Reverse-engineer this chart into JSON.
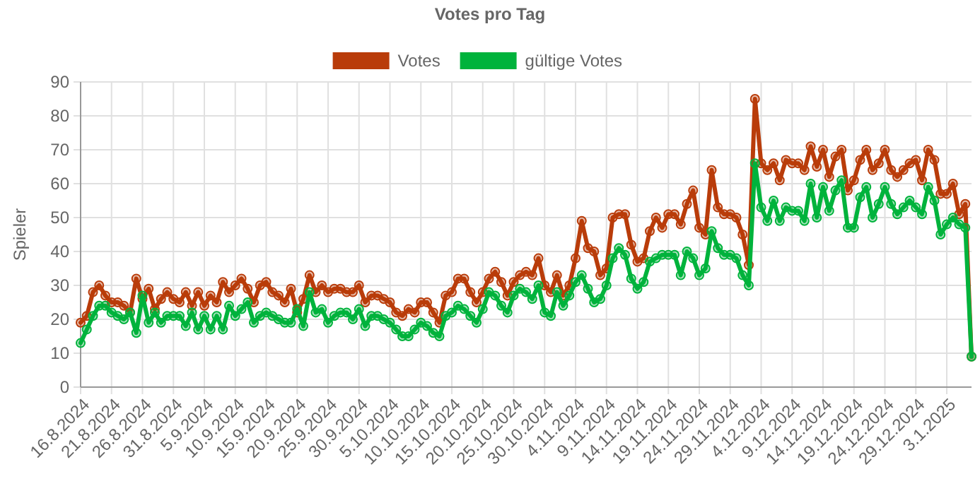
{
  "chart_data": {
    "type": "line",
    "title": "Votes pro Tag",
    "ylabel": "Spieler",
    "x": [
      "2024-08-16",
      "2024-08-17",
      "2024-08-18",
      "2024-08-19",
      "2024-08-20",
      "2024-08-21",
      "2024-08-22",
      "2024-08-23",
      "2024-08-24",
      "2024-08-25",
      "2024-08-26",
      "2024-08-27",
      "2024-08-28",
      "2024-08-29",
      "2024-08-30",
      "2024-08-31",
      "2024-09-01",
      "2024-09-02",
      "2024-09-03",
      "2024-09-04",
      "2024-09-05",
      "2024-09-06",
      "2024-09-07",
      "2024-09-08",
      "2024-09-09",
      "2024-09-10",
      "2024-09-11",
      "2024-09-12",
      "2024-09-13",
      "2024-09-14",
      "2024-09-15",
      "2024-09-16",
      "2024-09-17",
      "2024-09-18",
      "2024-09-19",
      "2024-09-20",
      "2024-09-21",
      "2024-09-22",
      "2024-09-23",
      "2024-09-24",
      "2024-09-25",
      "2024-09-26",
      "2024-09-27",
      "2024-09-28",
      "2024-09-29",
      "2024-09-30",
      "2024-10-01",
      "2024-10-02",
      "2024-10-03",
      "2024-10-04",
      "2024-10-05",
      "2024-10-06",
      "2024-10-07",
      "2024-10-08",
      "2024-10-09",
      "2024-10-10",
      "2024-10-11",
      "2024-10-12",
      "2024-10-13",
      "2024-10-14",
      "2024-10-15",
      "2024-10-16",
      "2024-10-17",
      "2024-10-18",
      "2024-10-19",
      "2024-10-20",
      "2024-10-21",
      "2024-10-22",
      "2024-10-23",
      "2024-10-24",
      "2024-10-25",
      "2024-10-26",
      "2024-10-27",
      "2024-10-28",
      "2024-10-29",
      "2024-10-30",
      "2024-10-31",
      "2024-11-01",
      "2024-11-02",
      "2024-11-03",
      "2024-11-04",
      "2024-11-05",
      "2024-11-06",
      "2024-11-07",
      "2024-11-08",
      "2024-11-09",
      "2024-11-10",
      "2024-11-11",
      "2024-11-12",
      "2024-11-13",
      "2024-11-14",
      "2024-11-15",
      "2024-11-16",
      "2024-11-17",
      "2024-11-18",
      "2024-11-19",
      "2024-11-20",
      "2024-11-21",
      "2024-11-22",
      "2024-11-23",
      "2024-11-24",
      "2024-11-25",
      "2024-11-26",
      "2024-11-27",
      "2024-11-28",
      "2024-11-29",
      "2024-11-30",
      "2024-12-01",
      "2024-12-02",
      "2024-12-03",
      "2024-12-04",
      "2024-12-05",
      "2024-12-06",
      "2024-12-07",
      "2024-12-08",
      "2024-12-09",
      "2024-12-10",
      "2024-12-11",
      "2024-12-12",
      "2024-12-13",
      "2024-12-14",
      "2024-12-15",
      "2024-12-16",
      "2024-12-17",
      "2024-12-18",
      "2024-12-19",
      "2024-12-20",
      "2024-12-21",
      "2024-12-22",
      "2024-12-23",
      "2024-12-24",
      "2024-12-25",
      "2024-12-26",
      "2024-12-27",
      "2024-12-28",
      "2024-12-29",
      "2024-12-30",
      "2024-12-31",
      "2025-01-01",
      "2025-01-02",
      "2025-01-03",
      "2025-01-04",
      "2025-01-05",
      "2025-01-06",
      "2025-01-07"
    ],
    "xlim": [
      "2024-08-16",
      "2025-01-07"
    ],
    "xticks": [
      {
        "value": "2024-08-16",
        "label": "16.8.2024"
      },
      {
        "value": "2024-08-21",
        "label": "21.8.2024"
      },
      {
        "value": "2024-08-26",
        "label": "26.8.2024"
      },
      {
        "value": "2024-08-31",
        "label": "31.8.2024"
      },
      {
        "value": "2024-09-05",
        "label": "5.9.2024"
      },
      {
        "value": "2024-09-10",
        "label": "10.9.2024"
      },
      {
        "value": "2024-09-15",
        "label": "15.9.2024"
      },
      {
        "value": "2024-09-20",
        "label": "20.9.2024"
      },
      {
        "value": "2024-09-25",
        "label": "25.9.2024"
      },
      {
        "value": "2024-09-30",
        "label": "30.9.2024"
      },
      {
        "value": "2024-10-05",
        "label": "5.10.2024"
      },
      {
        "value": "2024-10-10",
        "label": "10.10.2024"
      },
      {
        "value": "2024-10-15",
        "label": "15.10.2024"
      },
      {
        "value": "2024-10-20",
        "label": "20.10.2024"
      },
      {
        "value": "2024-10-25",
        "label": "25.10.2024"
      },
      {
        "value": "2024-10-30",
        "label": "30.10.2024"
      },
      {
        "value": "2024-11-04",
        "label": "4.11.2024"
      },
      {
        "value": "2024-11-09",
        "label": "9.11.2024"
      },
      {
        "value": "2024-11-14",
        "label": "14.11.2024"
      },
      {
        "value": "2024-11-19",
        "label": "19.11.2024"
      },
      {
        "value": "2024-11-24",
        "label": "24.11.2024"
      },
      {
        "value": "2024-11-29",
        "label": "29.11.2024"
      },
      {
        "value": "2024-12-04",
        "label": "4.12.2024"
      },
      {
        "value": "2024-12-09",
        "label": "9.12.2024"
      },
      {
        "value": "2024-12-14",
        "label": "14.12.2024"
      },
      {
        "value": "2024-12-19",
        "label": "19.12.2024"
      },
      {
        "value": "2024-12-24",
        "label": "24.12.2024"
      },
      {
        "value": "2024-12-29",
        "label": "29.12.2024"
      },
      {
        "value": "2025-01-03",
        "label": "3.1.2025"
      }
    ],
    "series": [
      {
        "name": "Votes",
        "color": "#b93c0a",
        "values": [
          19,
          21,
          28,
          30,
          27,
          25,
          25,
          24,
          22,
          32,
          26,
          29,
          23,
          26,
          28,
          26,
          25,
          28,
          24,
          28,
          24,
          27,
          25,
          31,
          28,
          30,
          32,
          29,
          25,
          30,
          31,
          28,
          27,
          25,
          29,
          22,
          26,
          33,
          28,
          30,
          28,
          29,
          29,
          28,
          28,
          30,
          25,
          27,
          27,
          26,
          25,
          22,
          21,
          23,
          22,
          25,
          25,
          22,
          19,
          27,
          28,
          32,
          32,
          28,
          25,
          28,
          32,
          34,
          31,
          27,
          31,
          33,
          34,
          33,
          38,
          30,
          28,
          33,
          27,
          30,
          38,
          49,
          41,
          40,
          33,
          35,
          50,
          51,
          51,
          42,
          37,
          38,
          46,
          50,
          47,
          51,
          51,
          48,
          54,
          58,
          47,
          45,
          64,
          53,
          51,
          51,
          50,
          45,
          36,
          85,
          66,
          64,
          66,
          61,
          67,
          66,
          66,
          64,
          71,
          65,
          70,
          62,
          68,
          70,
          58,
          61,
          67,
          70,
          64,
          66,
          70,
          64,
          62,
          64,
          66,
          67,
          61,
          70,
          67,
          57,
          57,
          60,
          51,
          54,
          9
        ]
      },
      {
        "name": "gültige Votes",
        "color": "#00b33c",
        "values": [
          13,
          17,
          21,
          24,
          24,
          22,
          21,
          20,
          22,
          16,
          27,
          19,
          22,
          19,
          21,
          21,
          21,
          18,
          22,
          17,
          21,
          17,
          21,
          17,
          24,
          21,
          23,
          25,
          19,
          21,
          22,
          21,
          20,
          19,
          19,
          23,
          18,
          28,
          22,
          23,
          19,
          21,
          22,
          22,
          20,
          23,
          18,
          21,
          21,
          20,
          19,
          17,
          15,
          15,
          17,
          19,
          18,
          16,
          15,
          21,
          22,
          24,
          23,
          21,
          19,
          23,
          28,
          27,
          24,
          22,
          27,
          29,
          28,
          26,
          30,
          22,
          21,
          28,
          24,
          27,
          31,
          33,
          29,
          25,
          26,
          30,
          38,
          41,
          39,
          32,
          29,
          31,
          37,
          38,
          39,
          39,
          39,
          33,
          40,
          38,
          33,
          35,
          46,
          41,
          39,
          39,
          38,
          33,
          30,
          66,
          53,
          49,
          55,
          49,
          53,
          52,
          52,
          49,
          60,
          50,
          59,
          52,
          58,
          61,
          47,
          47,
          56,
          59,
          50,
          54,
          59,
          54,
          51,
          53,
          55,
          53,
          51,
          59,
          55,
          45,
          48,
          50,
          48,
          47,
          9
        ]
      }
    ],
    "ylim": [
      0,
      90
    ],
    "yticks": [
      0,
      10,
      20,
      30,
      40,
      50,
      60,
      70,
      80,
      90
    ],
    "grid": true,
    "legend": "top",
    "marker": "circle",
    "line_style": "solid"
  }
}
